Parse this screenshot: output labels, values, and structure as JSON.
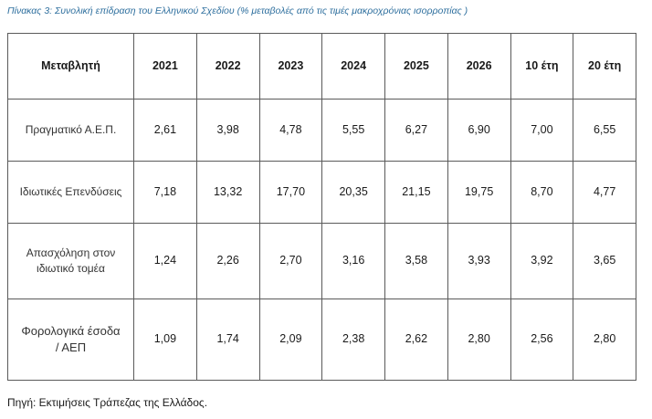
{
  "caption": "Πίνακας 3: Συνολική επίδραση του Ελληνικού Σχεδίου (% μεταβολές από τις τιμές μακροχρόνιας ισορροπίας )",
  "table": {
    "headers": [
      "Μεταβλητή",
      "2021",
      "2022",
      "2023",
      "2024",
      "2025",
      "2026",
      "10 έτη",
      "20 έτη"
    ],
    "rows": [
      {
        "label": "Πραγματικό Α.Ε.Π.",
        "values": [
          "2,61",
          "3,98",
          "4,78",
          "5,55",
          "6,27",
          "6,90",
          "7,00",
          "6,55"
        ]
      },
      {
        "label": "Ιδιωτικές Επενδύσεις",
        "values": [
          "7,18",
          "13,32",
          "17,70",
          "20,35",
          "21,15",
          "19,75",
          "8,70",
          "4,77"
        ]
      },
      {
        "label_line1": "Απασχόληση στον",
        "label_line2": "ιδιωτικό τομέα",
        "values": [
          "1,24",
          "2,26",
          "2,70",
          "3,16",
          "3,58",
          "3,93",
          "3,92",
          "3,65"
        ]
      },
      {
        "label_line1": "Φορολογικά έσοδα",
        "label_line2": "/ ΑΕΠ",
        "values": [
          "1,09",
          "1,74",
          "2,09",
          "2,38",
          "2,62",
          "2,80",
          "2,56",
          "2,80"
        ]
      }
    ]
  },
  "source": "Πηγή: Εκτιμήσεις Τράπεζας της Ελλάδος."
}
